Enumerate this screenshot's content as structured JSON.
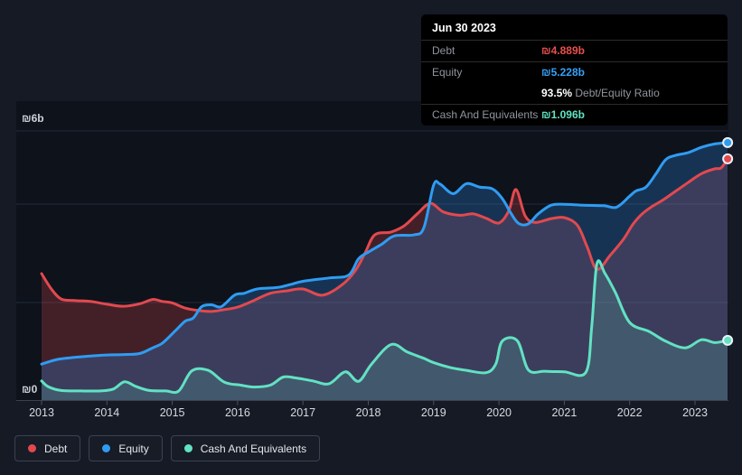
{
  "tooltip": {
    "date": "Jun 30 2023",
    "debt_label": "Debt",
    "debt_value": "₪4.889b",
    "equity_label": "Equity",
    "equity_value": "₪5.228b",
    "ratio_value": "93.5%",
    "ratio_label": "Debt/Equity Ratio",
    "cash_label": "Cash And Equivalents",
    "cash_value": "₪1.096b"
  },
  "legend": {
    "items": [
      {
        "label": "Debt",
        "color": "#e2494f"
      },
      {
        "label": "Equity",
        "color": "#2f9cf2"
      },
      {
        "label": "Cash And Equivalents",
        "color": "#62e2c3"
      }
    ]
  },
  "chart_data": {
    "type": "area",
    "unit": "₪ billions",
    "y_axis": {
      "top_label": "₪6b",
      "zero_label": "₪0",
      "range_b": [
        0,
        6
      ],
      "grid": true
    },
    "x_axis": {
      "range": [
        2013,
        2023.5
      ],
      "ticks": [
        2013,
        2014,
        2015,
        2016,
        2017,
        2018,
        2019,
        2020,
        2021,
        2022,
        2023
      ],
      "tick_labels": [
        "2013",
        "2014",
        "2015",
        "2016",
        "2017",
        "2018",
        "2019",
        "2020",
        "2021",
        "2022",
        "2023"
      ]
    },
    "legend_position": "bottom-left",
    "series": [
      {
        "name": "Debt",
        "color": "#e2494f",
        "fill": "rgba(226,73,79,0.26)",
        "last_value_label": "₪4.889b",
        "points": [
          [
            2013.0,
            2.49
          ],
          [
            2013.15,
            2.17
          ],
          [
            2013.3,
            1.96
          ],
          [
            2013.5,
            1.93
          ],
          [
            2013.75,
            1.91
          ],
          [
            2014.0,
            1.85
          ],
          [
            2014.25,
            1.81
          ],
          [
            2014.5,
            1.86
          ],
          [
            2014.7,
            1.95
          ],
          [
            2014.85,
            1.91
          ],
          [
            2015.0,
            1.88
          ],
          [
            2015.2,
            1.77
          ],
          [
            2015.4,
            1.72
          ],
          [
            2015.6,
            1.7
          ],
          [
            2015.8,
            1.74
          ],
          [
            2016.0,
            1.79
          ],
          [
            2016.25,
            1.93
          ],
          [
            2016.5,
            2.08
          ],
          [
            2016.75,
            2.13
          ],
          [
            2017.0,
            2.17
          ],
          [
            2017.3,
            2.04
          ],
          [
            2017.6,
            2.26
          ],
          [
            2017.8,
            2.55
          ],
          [
            2017.95,
            2.92
          ],
          [
            2018.1,
            3.3
          ],
          [
            2018.35,
            3.36
          ],
          [
            2018.55,
            3.49
          ],
          [
            2018.75,
            3.74
          ],
          [
            2018.95,
            3.96
          ],
          [
            2019.15,
            3.78
          ],
          [
            2019.4,
            3.71
          ],
          [
            2019.6,
            3.74
          ],
          [
            2019.8,
            3.65
          ],
          [
            2020.0,
            3.55
          ],
          [
            2020.15,
            3.8
          ],
          [
            2020.26,
            4.25
          ],
          [
            2020.4,
            3.7
          ],
          [
            2020.55,
            3.56
          ],
          [
            2020.8,
            3.64
          ],
          [
            2021.0,
            3.66
          ],
          [
            2021.2,
            3.5
          ],
          [
            2021.35,
            3.05
          ],
          [
            2021.5,
            2.58
          ],
          [
            2021.7,
            2.87
          ],
          [
            2021.9,
            3.2
          ],
          [
            2022.05,
            3.52
          ],
          [
            2022.2,
            3.75
          ],
          [
            2022.35,
            3.9
          ],
          [
            2022.5,
            4.02
          ],
          [
            2022.7,
            4.21
          ],
          [
            2022.9,
            4.4
          ],
          [
            2023.1,
            4.58
          ],
          [
            2023.3,
            4.68
          ],
          [
            2023.4,
            4.7
          ],
          [
            2023.5,
            4.889
          ]
        ]
      },
      {
        "name": "Equity",
        "color": "#2f9cf2",
        "fill": "rgba(47,130,215,0.30)",
        "last_value_label": "₪5.228b",
        "points": [
          [
            2013.0,
            0.6
          ],
          [
            2013.25,
            0.7
          ],
          [
            2013.5,
            0.74
          ],
          [
            2013.75,
            0.77
          ],
          [
            2014.0,
            0.79
          ],
          [
            2014.25,
            0.8
          ],
          [
            2014.5,
            0.82
          ],
          [
            2014.7,
            0.94
          ],
          [
            2014.85,
            1.04
          ],
          [
            2015.05,
            1.3
          ],
          [
            2015.2,
            1.5
          ],
          [
            2015.32,
            1.56
          ],
          [
            2015.45,
            1.8
          ],
          [
            2015.6,
            1.84
          ],
          [
            2015.75,
            1.8
          ],
          [
            2015.95,
            2.04
          ],
          [
            2016.1,
            2.08
          ],
          [
            2016.3,
            2.17
          ],
          [
            2016.6,
            2.2
          ],
          [
            2016.8,
            2.26
          ],
          [
            2017.0,
            2.33
          ],
          [
            2017.4,
            2.4
          ],
          [
            2017.7,
            2.46
          ],
          [
            2017.85,
            2.8
          ],
          [
            2018.0,
            2.94
          ],
          [
            2018.2,
            3.1
          ],
          [
            2018.4,
            3.28
          ],
          [
            2018.7,
            3.3
          ],
          [
            2018.85,
            3.45
          ],
          [
            2019.0,
            4.34
          ],
          [
            2019.1,
            4.36
          ],
          [
            2019.3,
            4.16
          ],
          [
            2019.5,
            4.37
          ],
          [
            2019.7,
            4.3
          ],
          [
            2019.9,
            4.26
          ],
          [
            2020.05,
            4.06
          ],
          [
            2020.18,
            3.76
          ],
          [
            2020.3,
            3.54
          ],
          [
            2020.45,
            3.53
          ],
          [
            2020.6,
            3.74
          ],
          [
            2020.8,
            3.92
          ],
          [
            2021.0,
            3.94
          ],
          [
            2021.3,
            3.92
          ],
          [
            2021.6,
            3.91
          ],
          [
            2021.8,
            3.88
          ],
          [
            2022.0,
            4.11
          ],
          [
            2022.1,
            4.22
          ],
          [
            2022.25,
            4.3
          ],
          [
            2022.4,
            4.57
          ],
          [
            2022.55,
            4.87
          ],
          [
            2022.7,
            4.96
          ],
          [
            2022.9,
            5.02
          ],
          [
            2023.1,
            5.13
          ],
          [
            2023.3,
            5.2
          ],
          [
            2023.5,
            5.228
          ]
        ]
      },
      {
        "name": "Cash And Equivalents",
        "color": "#62e2c3",
        "fill": "rgba(98,226,195,0.17)",
        "last_value_label": "₪1.096b",
        "points": [
          [
            2013.0,
            0.25
          ],
          [
            2013.1,
            0.13
          ],
          [
            2013.3,
            0.05
          ],
          [
            2013.6,
            0.04
          ],
          [
            2013.9,
            0.04
          ],
          [
            2014.1,
            0.08
          ],
          [
            2014.27,
            0.23
          ],
          [
            2014.45,
            0.13
          ],
          [
            2014.65,
            0.05
          ],
          [
            2014.9,
            0.04
          ],
          [
            2015.1,
            0.04
          ],
          [
            2015.3,
            0.46
          ],
          [
            2015.55,
            0.47
          ],
          [
            2015.8,
            0.22
          ],
          [
            2016.05,
            0.16
          ],
          [
            2016.25,
            0.12
          ],
          [
            2016.5,
            0.16
          ],
          [
            2016.7,
            0.33
          ],
          [
            2016.9,
            0.31
          ],
          [
            2017.15,
            0.25
          ],
          [
            2017.4,
            0.19
          ],
          [
            2017.65,
            0.44
          ],
          [
            2017.85,
            0.24
          ],
          [
            2018.05,
            0.6
          ],
          [
            2018.35,
            1.01
          ],
          [
            2018.6,
            0.85
          ],
          [
            2018.85,
            0.72
          ],
          [
            2019.0,
            0.63
          ],
          [
            2019.25,
            0.53
          ],
          [
            2019.5,
            0.47
          ],
          [
            2019.8,
            0.42
          ],
          [
            2019.95,
            0.6
          ],
          [
            2020.05,
            1.08
          ],
          [
            2020.28,
            1.09
          ],
          [
            2020.45,
            0.48
          ],
          [
            2020.7,
            0.45
          ],
          [
            2021.0,
            0.44
          ],
          [
            2021.33,
            0.43
          ],
          [
            2021.42,
            1.4
          ],
          [
            2021.5,
            2.7
          ],
          [
            2021.62,
            2.5
          ],
          [
            2021.78,
            2.1
          ],
          [
            2022.0,
            1.47
          ],
          [
            2022.3,
            1.28
          ],
          [
            2022.55,
            1.08
          ],
          [
            2022.85,
            0.94
          ],
          [
            2023.1,
            1.11
          ],
          [
            2023.3,
            1.05
          ],
          [
            2023.5,
            1.096
          ]
        ]
      }
    ]
  }
}
